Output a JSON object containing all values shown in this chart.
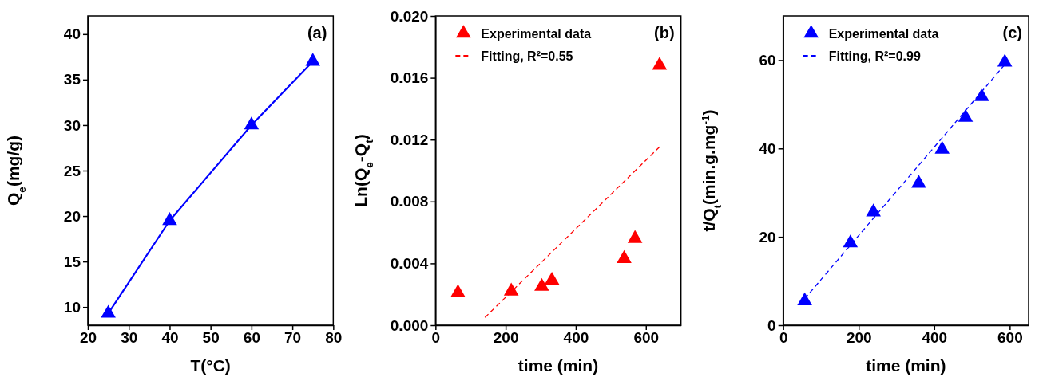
{
  "chart_data": [
    {
      "type": "line",
      "title": "(a)",
      "xlabel": "T(°C)",
      "ylabel": "Q$_{e}$(mg/g)",
      "xlim": [
        20,
        80
      ],
      "xticks": [
        20,
        30,
        40,
        50,
        60,
        70,
        80
      ],
      "ylim": [
        8,
        42
      ],
      "yticks": [
        10,
        15,
        20,
        25,
        30,
        35,
        40
      ],
      "marker": "triangle",
      "line_style": "solid",
      "legend": false,
      "series": [
        {
          "color": "#0000ff",
          "x": [
            25,
            40,
            60,
            75
          ],
          "values": [
            9.3,
            19.5,
            30,
            37
          ]
        }
      ]
    },
    {
      "type": "scatter",
      "title": "(b)",
      "xlabel": "time (min)",
      "ylabel": "Ln(Q$_{e}$-Q$_{t}$)",
      "xlim": [
        0,
        700
      ],
      "xticks": [
        0,
        200,
        400,
        600
      ],
      "ylim": [
        0,
        0.02
      ],
      "yticks": [
        {
          "value": 0,
          "label": "0.000"
        },
        0.004,
        0.008,
        0.012,
        0.016,
        {
          "value": 0.02,
          "label": "0.020"
        }
      ],
      "legend": "top left",
      "series": [
        {
          "name": "Experimental data",
          "marker": "triangle",
          "color": "#ff0000",
          "x": [
            64,
            216,
            303,
            332,
            538,
            569,
            639
          ],
          "values": [
            0.0021,
            0.0022,
            0.0025,
            0.0029,
            0.0043,
            0.0056,
            0.0168
          ]
        },
        {
          "name": "Fitting, R²=0.55",
          "type": "line",
          "marker": "none",
          "line_style": "dashed",
          "color": "#ff0000",
          "x": [
            141,
            642
          ],
          "values": [
            0.0005,
            0.0116
          ]
        }
      ]
    },
    {
      "type": "scatter",
      "title": "(c)",
      "xlabel": "time (min)",
      "ylabel": "t/Q$_{t}$(min.g.mg$^{-1}$)",
      "xlim": [
        0,
        650
      ],
      "xticks": [
        0,
        200,
        400,
        600
      ],
      "ylim": [
        0,
        70
      ],
      "yticks": [
        0,
        20,
        40,
        60
      ],
      "legend": "top left",
      "series": [
        {
          "name": "Experimental data",
          "marker": "triangle",
          "color": "#0000ff",
          "x": [
            57,
            178,
            239,
            359,
            421,
            483,
            526,
            587
          ],
          "values": [
            5.5,
            18.6,
            25.6,
            32.1,
            39.8,
            47.0,
            51.7,
            59.5
          ]
        },
        {
          "name": "Fitting, R²=0.99",
          "type": "line",
          "marker": "none",
          "line_style": "dashed",
          "color": "#0000ff",
          "x": [
            57,
            587
          ],
          "values": [
            6.0,
            59
          ]
        }
      ]
    }
  ]
}
